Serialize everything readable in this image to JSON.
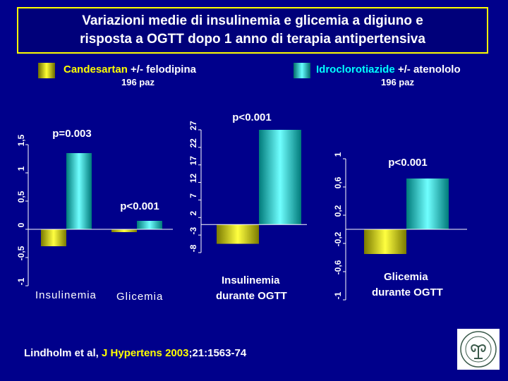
{
  "title": {
    "line1": "Variazioni medie di insulinemia e glicemia a digiuno e",
    "line2": "risposta a OGTT dopo 1 anno di terapia antipertensiva"
  },
  "legend": [
    {
      "drug": "Candesartan",
      "rest": " +/- felodipina",
      "sub": "196 paz",
      "color": "#ffff00"
    },
    {
      "drug": "Idroclorotiazide",
      "rest": " +/- atenololo",
      "sub": "196 paz",
      "color": "#00ffff"
    }
  ],
  "citation": {
    "authors": "Lindholm et al, ",
    "journal": "J Hypertens",
    "year": "2003",
    "rest": ";21:1563-74"
  },
  "chart_data": [
    {
      "type": "bar",
      "categories": [
        "Insulinemia",
        "Glicemia"
      ],
      "series": [
        {
          "name": "Candesartan +/- felodipina",
          "values": [
            -0.3,
            -0.05
          ]
        },
        {
          "name": "Idroclorotiazide +/- atenololo",
          "values": [
            1.35,
            0.15
          ]
        }
      ],
      "ylim": [
        -1,
        1.5
      ],
      "yticks": [
        "1,5",
        "1",
        "0,5",
        "0",
        "-0,5",
        "-1"
      ],
      "ytick_values": [
        1.5,
        1,
        0.5,
        0,
        -0.5,
        -1
      ],
      "annotations": [
        "p=0.003",
        "p<0.001"
      ]
    },
    {
      "type": "bar",
      "categories": [
        "Insulinemia durante OGTT"
      ],
      "series": [
        {
          "name": "Candesartan +/- felodipina",
          "values": [
            -5.5
          ]
        },
        {
          "name": "Idroclorotiazide +/- atenololo",
          "values": [
            27
          ]
        }
      ],
      "ylim": [
        -8,
        27
      ],
      "yticks": [
        "27",
        "22",
        "17",
        "12",
        "7",
        "2",
        "-3",
        "-8"
      ],
      "ytick_values": [
        27,
        22,
        17,
        12,
        7,
        2,
        -3,
        -8
      ],
      "annotations": [
        "p<0.001"
      ]
    },
    {
      "type": "bar",
      "categories": [
        "Glicemia durante OGTT"
      ],
      "series": [
        {
          "name": "Candesartan +/- felodipina",
          "values": [
            -0.35
          ]
        },
        {
          "name": "Idroclorotiazide +/- atenololo",
          "values": [
            0.72
          ]
        }
      ],
      "ylim": [
        -1,
        1
      ],
      "yticks": [
        "1",
        "0,6",
        "0,2",
        "-0,2",
        "-0,6",
        "-1"
      ],
      "ytick_values": [
        1,
        0.6,
        0.2,
        -0.2,
        -0.6,
        -1
      ],
      "annotations": [
        "p<0.001"
      ]
    }
  ],
  "chart_labels": {
    "c1_cat1": "Insulinemia",
    "c1_cat2": "Glicemia",
    "c2_label_1": "Insulinemia",
    "c2_label_2": "durante OGTT",
    "c3_label_1": "Glicemia",
    "c3_label_2": "durante OGTT"
  }
}
